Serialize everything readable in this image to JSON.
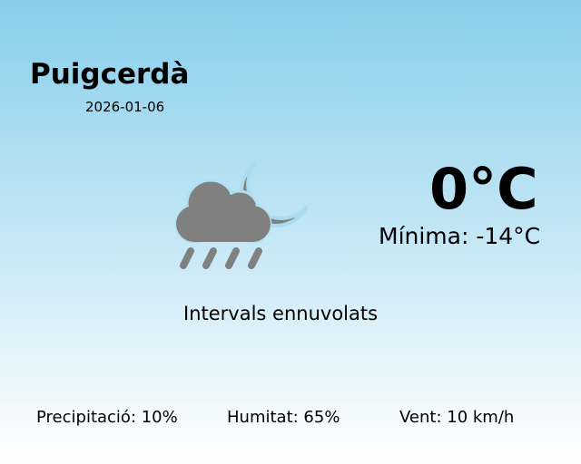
{
  "city": "Puigcerdà",
  "date": "2026-01-06",
  "temperature": "0°C",
  "min_temp": "Mínima: -14°C",
  "condition": "Intervals ennuvolats",
  "icon": "cloud-rain-moon-icon",
  "stats": {
    "precipitation": "Precipitació: 10%",
    "humidity": "Humitat: 65%",
    "wind": "Vent: 10 km/h"
  }
}
